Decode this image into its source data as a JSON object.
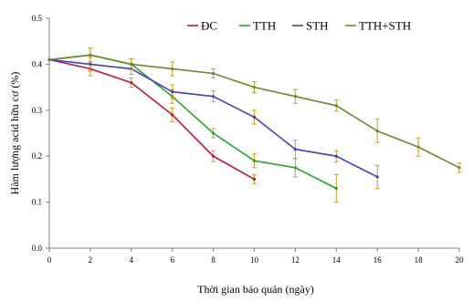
{
  "chart_data": {
    "type": "line",
    "title": "",
    "xlabel": "Thời gian bảo quản (ngày)",
    "ylabel": "Hàm lượng acid hữu cơ (%)",
    "xlim": [
      0,
      20
    ],
    "ylim": [
      0,
      0.5
    ],
    "x_ticks": [
      0,
      2,
      4,
      6,
      8,
      10,
      12,
      14,
      16,
      18,
      20
    ],
    "y_ticks": [
      "0.0",
      "0.1",
      "0.2",
      "0.3",
      "0.4",
      "0.5"
    ],
    "grid": false,
    "legend_position": "top",
    "series": [
      {
        "name": "ĐC",
        "color": "#c0143c",
        "x": [
          0,
          2,
          4,
          6,
          8,
          10
        ],
        "values": [
          0.41,
          0.39,
          0.36,
          0.29,
          0.2,
          0.15
        ],
        "errors": [
          0.0,
          0.015,
          0.01,
          0.015,
          0.012,
          0.01
        ]
      },
      {
        "name": "TTH",
        "color": "#2aa42a",
        "x": [
          0,
          2,
          4,
          6,
          8,
          10,
          12,
          14
        ],
        "values": [
          0.41,
          0.42,
          0.4,
          0.33,
          0.25,
          0.19,
          0.175,
          0.13
        ],
        "errors": [
          0.0,
          0.015,
          0.012,
          0.015,
          0.01,
          0.015,
          0.02,
          0.03
        ]
      },
      {
        "name": "STH",
        "color": "#4040c8",
        "x": [
          0,
          2,
          4,
          6,
          8,
          10,
          12,
          14,
          16
        ],
        "values": [
          0.41,
          0.4,
          0.39,
          0.34,
          0.33,
          0.285,
          0.215,
          0.2,
          0.155
        ],
        "errors": [
          0.0,
          0.015,
          0.012,
          0.015,
          0.012,
          0.015,
          0.02,
          0.012,
          0.025
        ]
      },
      {
        "name": "TTH+STH",
        "color": "#6a8a2a",
        "x": [
          0,
          2,
          4,
          6,
          8,
          10,
          12,
          14,
          16,
          18,
          20
        ],
        "values": [
          0.41,
          0.42,
          0.4,
          0.39,
          0.38,
          0.35,
          0.33,
          0.31,
          0.255,
          0.22,
          0.175
        ],
        "errors": [
          0.0,
          0.015,
          0.012,
          0.015,
          0.01,
          0.012,
          0.015,
          0.012,
          0.025,
          0.02,
          0.01
        ]
      }
    ],
    "error_bar_color": "#d4a017"
  }
}
